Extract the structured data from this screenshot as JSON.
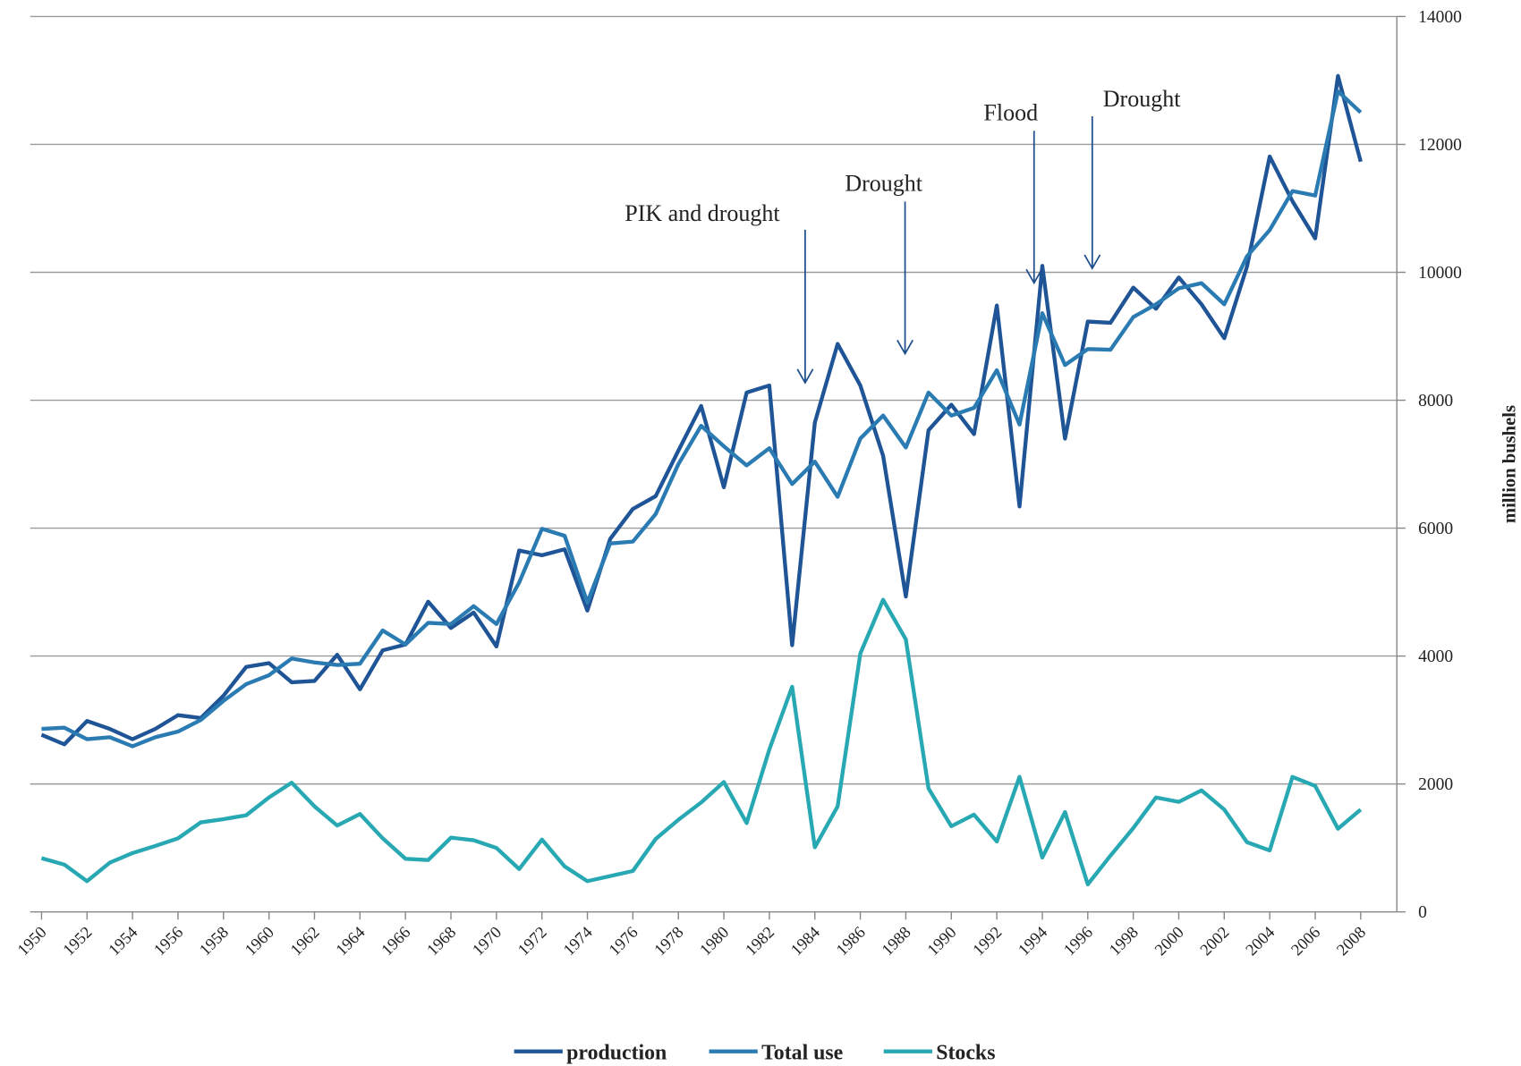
{
  "chart_data": {
    "type": "line",
    "x": [
      1950,
      1951,
      1952,
      1953,
      1954,
      1955,
      1956,
      1957,
      1958,
      1959,
      1960,
      1961,
      1962,
      1963,
      1964,
      1965,
      1966,
      1967,
      1968,
      1969,
      1970,
      1971,
      1972,
      1973,
      1974,
      1975,
      1976,
      1977,
      1978,
      1979,
      1980,
      1981,
      1982,
      1983,
      1984,
      1985,
      1986,
      1987,
      1988,
      1989,
      1990,
      1991,
      1992,
      1993,
      1994,
      1995,
      1996,
      1997,
      1998,
      1999,
      2000,
      2001,
      2002,
      2003,
      2004,
      2005,
      2006,
      2007,
      2008
    ],
    "series": [
      {
        "name": "production",
        "color": "#1f5596",
        "values": [
          2770,
          2620,
          2985,
          2860,
          2700,
          2860,
          3075,
          3030,
          3380,
          3830,
          3890,
          3590,
          3610,
          4020,
          3480,
          4090,
          4180,
          4850,
          4440,
          4680,
          4150,
          5650,
          5575,
          5670,
          4710,
          5830,
          6300,
          6500,
          7210,
          7910,
          6640,
          8120,
          8230,
          4170,
          7650,
          8880,
          8230,
          7130,
          4930,
          7530,
          7930,
          7470,
          9480,
          6340,
          10100,
          7400,
          9230,
          9210,
          9760,
          9430,
          9920,
          9500,
          8970,
          10090,
          11810,
          11110,
          10530,
          13070,
          11730
        ]
      },
      {
        "name": "Total use",
        "color": "#2b7bb3",
        "values": [
          2860,
          2880,
          2700,
          2730,
          2590,
          2730,
          2820,
          3000,
          3300,
          3560,
          3700,
          3960,
          3900,
          3860,
          3880,
          4400,
          4180,
          4520,
          4500,
          4780,
          4500,
          5150,
          5990,
          5880,
          4840,
          5760,
          5790,
          6220,
          7000,
          7600,
          7280,
          6980,
          7250,
          6690,
          7040,
          6490,
          7400,
          7760,
          7260,
          8120,
          7760,
          7880,
          8470,
          7620,
          9360,
          8550,
          8800,
          8790,
          9300,
          9500,
          9750,
          9830,
          9500,
          10250,
          10660,
          11270,
          11200,
          12830,
          12500
        ]
      },
      {
        "name": "Stocks",
        "color": "#27a8b2",
        "values": [
          840,
          740,
          480,
          770,
          920,
          1030,
          1150,
          1400,
          1450,
          1510,
          1790,
          2020,
          1650,
          1350,
          1530,
          1150,
          830,
          810,
          1160,
          1120,
          1000,
          670,
          1130,
          710,
          480,
          560,
          640,
          1140,
          1440,
          1710,
          2030,
          1390,
          2540,
          3520,
          1010,
          1650,
          4040,
          4880,
          4260,
          1930,
          1340,
          1520,
          1100,
          2110,
          850,
          1560,
          430,
          880,
          1310,
          1790,
          1720,
          1900,
          1600,
          1090,
          960,
          2110,
          1970,
          1300,
          1600
        ]
      }
    ],
    "xlim": [
      1949.5,
      2009.5
    ],
    "xticks": [
      1950,
      1952,
      1954,
      1956,
      1958,
      1960,
      1962,
      1964,
      1966,
      1968,
      1970,
      1972,
      1974,
      1976,
      1978,
      1980,
      1982,
      1984,
      1986,
      1988,
      1990,
      1992,
      1994,
      1996,
      1998,
      2000,
      2002,
      2004,
      2006,
      2008
    ],
    "ylim": [
      0,
      14000
    ],
    "yticks": [
      0,
      2000,
      4000,
      6000,
      8000,
      10000,
      12000,
      14000
    ],
    "ylabel": "million bushels",
    "grid": true,
    "legend": "bottom",
    "annotations": [
      {
        "text": "PIK and drought"
      },
      {
        "text": "Drought"
      },
      {
        "text": "Flood"
      },
      {
        "text": "Drought"
      }
    ]
  }
}
